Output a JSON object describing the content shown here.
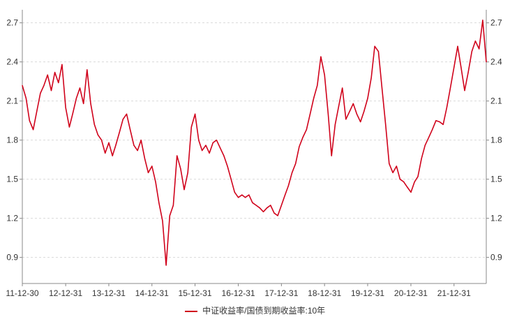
{
  "chart_data": {
    "type": "line",
    "legend": {
      "position": "bottom",
      "entries": [
        "中证收益率/国债到期收益率:10年"
      ]
    },
    "grid": {
      "horizontal": true,
      "vertical": false,
      "style": "dashed"
    },
    "x_tick_labels": [
      "11-12-30",
      "12-12-31",
      "13-12-31",
      "14-12-31",
      "15-12-31",
      "16-12-31",
      "17-12-31",
      "18-12-31",
      "19-12-31",
      "20-12-31",
      "21-12-31"
    ],
    "xlim": [
      "2011-12-30",
      "2022-09-30"
    ],
    "ylim": [
      0.7,
      2.8
    ],
    "y_ticks": [
      0.9,
      1.2,
      1.5,
      1.8,
      2.1,
      2.4,
      2.7
    ],
    "y_tick_labels": [
      "0.9",
      "1.2",
      "1.5",
      "1.8",
      "2.1",
      "2.4",
      "2.7"
    ],
    "series": [
      {
        "name": "中证收益率/国债到期收益率:10年",
        "color": "#d0021b",
        "points": [
          [
            "2011-12-30",
            2.22
          ],
          [
            "2012-01-31",
            2.12
          ],
          [
            "2012-02-29",
            1.95
          ],
          [
            "2012-03-31",
            1.88
          ],
          [
            "2012-04-30",
            2.02
          ],
          [
            "2012-05-31",
            2.16
          ],
          [
            "2012-06-30",
            2.22
          ],
          [
            "2012-07-31",
            2.3
          ],
          [
            "2012-08-31",
            2.18
          ],
          [
            "2012-09-30",
            2.32
          ],
          [
            "2012-10-31",
            2.24
          ],
          [
            "2012-11-30",
            2.38
          ],
          [
            "2012-12-31",
            2.05
          ],
          [
            "2013-01-31",
            1.9
          ],
          [
            "2013-02-28",
            2.0
          ],
          [
            "2013-03-31",
            2.12
          ],
          [
            "2013-04-30",
            2.2
          ],
          [
            "2013-05-31",
            2.08
          ],
          [
            "2013-06-30",
            2.34
          ],
          [
            "2013-07-31",
            2.08
          ],
          [
            "2013-08-31",
            1.92
          ],
          [
            "2013-09-30",
            1.84
          ],
          [
            "2013-10-31",
            1.8
          ],
          [
            "2013-11-30",
            1.7
          ],
          [
            "2013-12-31",
            1.78
          ],
          [
            "2014-01-31",
            1.68
          ],
          [
            "2014-02-28",
            1.76
          ],
          [
            "2014-03-31",
            1.86
          ],
          [
            "2014-04-30",
            1.96
          ],
          [
            "2014-05-31",
            2.0
          ],
          [
            "2014-06-30",
            1.88
          ],
          [
            "2014-07-31",
            1.76
          ],
          [
            "2014-08-31",
            1.72
          ],
          [
            "2014-09-30",
            1.8
          ],
          [
            "2014-10-31",
            1.66
          ],
          [
            "2014-11-30",
            1.55
          ],
          [
            "2014-12-31",
            1.6
          ],
          [
            "2015-01-31",
            1.48
          ],
          [
            "2015-02-28",
            1.32
          ],
          [
            "2015-03-31",
            1.18
          ],
          [
            "2015-04-30",
            0.84
          ],
          [
            "2015-05-31",
            1.22
          ],
          [
            "2015-06-30",
            1.3
          ],
          [
            "2015-07-31",
            1.68
          ],
          [
            "2015-08-31",
            1.58
          ],
          [
            "2015-09-30",
            1.42
          ],
          [
            "2015-10-31",
            1.55
          ],
          [
            "2015-11-30",
            1.9
          ],
          [
            "2015-12-31",
            2.0
          ],
          [
            "2016-01-31",
            1.8
          ],
          [
            "2016-02-29",
            1.72
          ],
          [
            "2016-03-31",
            1.76
          ],
          [
            "2016-04-30",
            1.7
          ],
          [
            "2016-05-31",
            1.78
          ],
          [
            "2016-06-30",
            1.8
          ],
          [
            "2016-07-31",
            1.74
          ],
          [
            "2016-08-31",
            1.68
          ],
          [
            "2016-09-30",
            1.6
          ],
          [
            "2016-10-31",
            1.5
          ],
          [
            "2016-11-30",
            1.4
          ],
          [
            "2016-12-31",
            1.36
          ],
          [
            "2017-01-31",
            1.38
          ],
          [
            "2017-02-28",
            1.36
          ],
          [
            "2017-03-31",
            1.38
          ],
          [
            "2017-04-30",
            1.32
          ],
          [
            "2017-05-31",
            1.3
          ],
          [
            "2017-06-30",
            1.28
          ],
          [
            "2017-07-31",
            1.25
          ],
          [
            "2017-08-31",
            1.28
          ],
          [
            "2017-09-30",
            1.3
          ],
          [
            "2017-10-31",
            1.24
          ],
          [
            "2017-11-30",
            1.22
          ],
          [
            "2017-12-31",
            1.3
          ],
          [
            "2018-01-31",
            1.38
          ],
          [
            "2018-02-28",
            1.45
          ],
          [
            "2018-03-31",
            1.55
          ],
          [
            "2018-04-30",
            1.62
          ],
          [
            "2018-05-31",
            1.75
          ],
          [
            "2018-06-30",
            1.82
          ],
          [
            "2018-07-31",
            1.88
          ],
          [
            "2018-08-31",
            2.0
          ],
          [
            "2018-09-30",
            2.12
          ],
          [
            "2018-10-31",
            2.22
          ],
          [
            "2018-11-30",
            2.44
          ],
          [
            "2018-12-31",
            2.3
          ],
          [
            "2019-01-31",
            2.0
          ],
          [
            "2019-02-28",
            1.68
          ],
          [
            "2019-03-31",
            1.92
          ],
          [
            "2019-04-30",
            2.06
          ],
          [
            "2019-05-31",
            2.2
          ],
          [
            "2019-06-30",
            1.96
          ],
          [
            "2019-07-31",
            2.02
          ],
          [
            "2019-08-31",
            2.08
          ],
          [
            "2019-09-30",
            2.0
          ],
          [
            "2019-10-31",
            1.94
          ],
          [
            "2019-11-30",
            2.02
          ],
          [
            "2019-12-31",
            2.12
          ],
          [
            "2020-01-31",
            2.28
          ],
          [
            "2020-02-29",
            2.52
          ],
          [
            "2020-03-31",
            2.48
          ],
          [
            "2020-04-30",
            2.2
          ],
          [
            "2020-05-31",
            1.92
          ],
          [
            "2020-06-30",
            1.62
          ],
          [
            "2020-07-31",
            1.55
          ],
          [
            "2020-08-31",
            1.6
          ],
          [
            "2020-09-30",
            1.5
          ],
          [
            "2020-10-31",
            1.48
          ],
          [
            "2020-11-30",
            1.44
          ],
          [
            "2020-12-31",
            1.4
          ],
          [
            "2021-01-31",
            1.48
          ],
          [
            "2021-02-28",
            1.52
          ],
          [
            "2021-03-31",
            1.66
          ],
          [
            "2021-04-30",
            1.76
          ],
          [
            "2021-05-31",
            1.82
          ],
          [
            "2021-06-30",
            1.88
          ],
          [
            "2021-07-31",
            1.95
          ],
          [
            "2021-08-31",
            1.94
          ],
          [
            "2021-09-30",
            1.92
          ],
          [
            "2021-10-31",
            2.05
          ],
          [
            "2021-11-30",
            2.2
          ],
          [
            "2021-12-31",
            2.36
          ],
          [
            "2022-01-31",
            2.52
          ],
          [
            "2022-02-28",
            2.36
          ],
          [
            "2022-03-31",
            2.18
          ],
          [
            "2022-04-30",
            2.32
          ],
          [
            "2022-05-31",
            2.48
          ],
          [
            "2022-06-30",
            2.56
          ],
          [
            "2022-07-31",
            2.5
          ],
          [
            "2022-08-31",
            2.72
          ],
          [
            "2022-09-30",
            2.4
          ]
        ]
      }
    ]
  }
}
